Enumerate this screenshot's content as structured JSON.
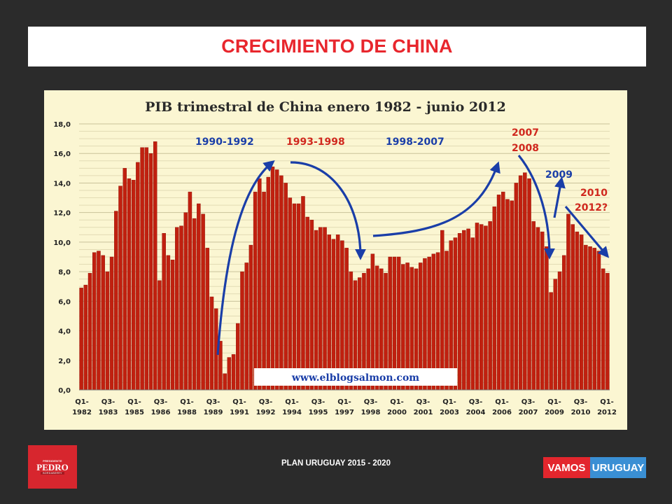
{
  "slide": {
    "title": "CRECIMIENTO DE CHINA",
    "footer": "PLAN URUGUAY 2015 - 2020"
  },
  "logo_left": {
    "top": "PRESIDENTE",
    "name": "PEDRO",
    "bottom": "BORDABERRY"
  },
  "logo_right": {
    "part1": "VAMOS",
    "part2": "URUGUAY"
  },
  "colors": {
    "title_red": "#e8262d",
    "bar_red": "#c0200f",
    "arrow_blue": "#1a3ea8",
    "label_red": "#d0281e",
    "chart_bg": "#fbf6d2"
  },
  "chart_data": {
    "type": "bar",
    "title": "PIB trimestral de China enero 1982 - junio 2012",
    "ylim": [
      0,
      18
    ],
    "yticks": [
      "0,0",
      "2,0",
      "4,0",
      "6,0",
      "8,0",
      "10,0",
      "12,0",
      "14,0",
      "16,0",
      "18,0"
    ],
    "xtick_labels": [
      [
        "Q1-",
        "1982"
      ],
      [
        "Q3-",
        "1983"
      ],
      [
        "Q1-",
        "1985"
      ],
      [
        "Q3-",
        "1986"
      ],
      [
        "Q1-",
        "1988"
      ],
      [
        "Q3-",
        "1989"
      ],
      [
        "Q1-",
        "1991"
      ],
      [
        "Q3-",
        "1992"
      ],
      [
        "Q1-",
        "1994"
      ],
      [
        "Q3-",
        "1995"
      ],
      [
        "Q1-",
        "1997"
      ],
      [
        "Q3-",
        "1998"
      ],
      [
        "Q1-",
        "2000"
      ],
      [
        "Q3-",
        "2001"
      ],
      [
        "Q1-",
        "2003"
      ],
      [
        "Q3-",
        "2004"
      ],
      [
        "Q1-",
        "2006"
      ],
      [
        "Q3-",
        "2007"
      ],
      [
        "Q1-",
        "2009"
      ],
      [
        "Q3-",
        "2010"
      ],
      [
        "Q1-",
        "2012"
      ]
    ],
    "grid": true,
    "values": [
      6.9,
      7.1,
      7.9,
      9.3,
      9.4,
      9.1,
      8.0,
      9.0,
      12.1,
      13.8,
      15.0,
      14.3,
      14.2,
      15.4,
      16.4,
      16.4,
      16.0,
      16.8,
      7.4,
      10.6,
      9.1,
      8.8,
      11.0,
      11.1,
      12.0,
      13.4,
      11.6,
      12.6,
      11.9,
      9.6,
      6.3,
      5.5,
      3.3,
      1.1,
      2.2,
      2.4,
      4.5,
      8.0,
      8.6,
      9.8,
      13.4,
      14.3,
      13.4,
      14.4,
      15.1,
      14.9,
      14.5,
      14.0,
      13.0,
      12.6,
      12.6,
      13.1,
      11.7,
      11.5,
      10.8,
      11.0,
      11.0,
      10.5,
      10.2,
      10.5,
      10.1,
      9.6,
      8.0,
      7.4,
      7.6,
      7.9,
      8.2,
      9.2,
      8.4,
      8.2,
      7.9,
      9.0,
      9.0,
      9.0,
      8.5,
      8.6,
      8.3,
      8.2,
      8.6,
      8.9,
      9.0,
      9.2,
      9.3,
      10.8,
      9.4,
      10.1,
      10.3,
      10.6,
      10.8,
      10.9,
      10.3,
      11.3,
      11.2,
      11.1,
      11.4,
      12.4,
      13.2,
      13.4,
      12.9,
      12.8,
      14.0,
      14.5,
      14.7,
      14.3,
      11.4,
      11.0,
      10.7,
      9.7,
      6.6,
      7.5,
      8.0,
      9.1,
      11.9,
      11.2,
      10.7,
      10.5,
      9.8,
      9.7,
      9.6,
      9.4,
      8.2,
      7.9
    ],
    "annotations": [
      {
        "text": "1990-1992",
        "color": "blue"
      },
      {
        "text": "1993-1998",
        "color": "red"
      },
      {
        "text": "1998-2007",
        "color": "blue"
      },
      {
        "text": "2007",
        "color": "red"
      },
      {
        "text": "2008",
        "color": "red"
      },
      {
        "text": "2009",
        "color": "blue"
      },
      {
        "text": "2010",
        "color": "red"
      },
      {
        "text": "2012?",
        "color": "red"
      }
    ],
    "watermark": "www.elblogsalmon.com"
  }
}
